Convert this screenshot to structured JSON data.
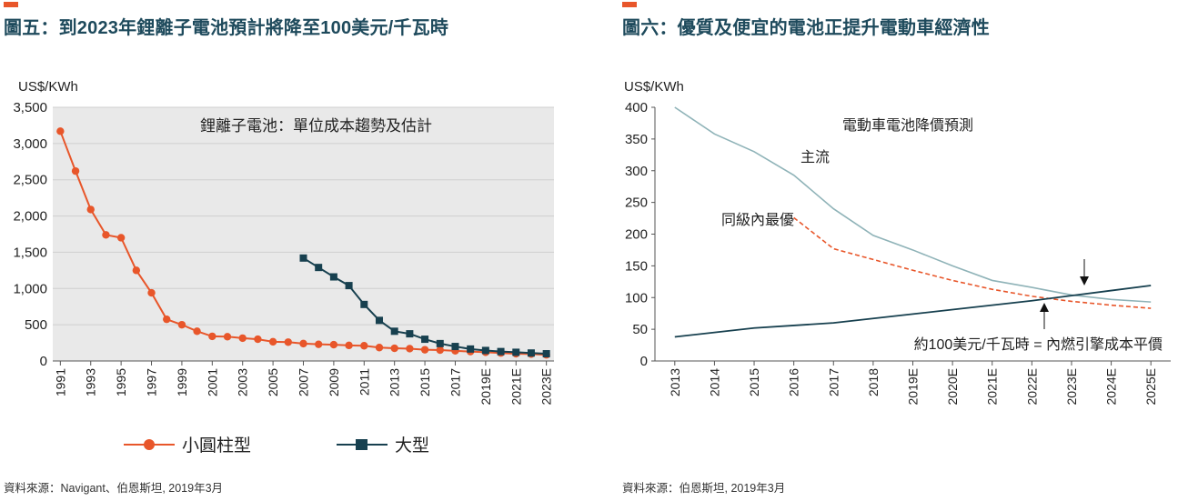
{
  "figures": [
    {
      "title": "圖五：到2023年鋰離子電池預計將降至100美元/千瓦時",
      "source": "資料來源：Navigant、伯恩斯坦, 2019年3月"
    },
    {
      "title": "圖六：優質及便宜的電池正提升電動車經濟性",
      "source": "資料來源：伯恩斯坦, 2019年3月"
    }
  ],
  "colors": {
    "accent": "#e8562a",
    "title": "#1e4a5c",
    "plot_bg": "#e9e9e9",
    "small_cylindrical": "#e8562a",
    "large": "#17404f",
    "mainstream": "#8fb3b8",
    "best_in_class": "#e8562a",
    "ice_parity": "#17404f"
  },
  "chart_data": [
    {
      "type": "line",
      "title": "鋰離子電池：單位成本趨勢及估計",
      "ylabel": "US$/KWh",
      "xlabel": "",
      "ylim": [
        0,
        3500
      ],
      "yticks": [
        "0",
        "500",
        "1,000",
        "1,500",
        "2,000",
        "2,500",
        "3,000",
        "3,500"
      ],
      "ytick_values": [
        0,
        500,
        1000,
        1500,
        2000,
        2500,
        3000,
        3500
      ],
      "grid": true,
      "legend_position": "bottom",
      "x_tick_labels": [
        "1991",
        "1993",
        "1995",
        "1997",
        "1999",
        "2001",
        "2003",
        "2005",
        "2007",
        "2009",
        "2011",
        "2013",
        "2015",
        "2017",
        "2019E",
        "2021E",
        "2023E"
      ],
      "x": [
        "1991",
        "1992",
        "1993",
        "1994",
        "1995",
        "1996",
        "1997",
        "1998",
        "1999",
        "2000",
        "2001",
        "2002",
        "2003",
        "2004",
        "2005",
        "2006",
        "2007",
        "2008",
        "2009",
        "2010",
        "2011",
        "2012",
        "2013",
        "2014",
        "2015",
        "2016",
        "2017",
        "2018",
        "2019E",
        "2020E",
        "2021E",
        "2022E",
        "2023E"
      ],
      "series": [
        {
          "name": "小圓柱型",
          "marker": "circle",
          "values": [
            3170,
            2620,
            2090,
            1740,
            1700,
            1250,
            940,
            575,
            500,
            410,
            340,
            335,
            315,
            300,
            265,
            260,
            240,
            230,
            225,
            215,
            210,
            185,
            175,
            170,
            155,
            150,
            140,
            130,
            120,
            110,
            100,
            95,
            85
          ]
        },
        {
          "name": "大型",
          "marker": "square",
          "values": [
            null,
            null,
            null,
            null,
            null,
            null,
            null,
            null,
            null,
            null,
            null,
            null,
            null,
            null,
            null,
            null,
            1420,
            1290,
            1160,
            1040,
            780,
            560,
            410,
            375,
            300,
            240,
            200,
            165,
            145,
            130,
            120,
            110,
            100
          ]
        }
      ]
    },
    {
      "type": "line",
      "title": "電動車電池降價預測",
      "ylabel": "US$/KWh",
      "xlabel": "",
      "ylim": [
        0,
        400
      ],
      "yticks": [
        "0",
        "50",
        "100",
        "150",
        "200",
        "250",
        "300",
        "350",
        "400"
      ],
      "ytick_values": [
        0,
        50,
        100,
        150,
        200,
        250,
        300,
        350,
        400
      ],
      "grid": false,
      "legend_position": "inline",
      "categories": [
        "2013",
        "2014",
        "2015",
        "2016",
        "2017",
        "2018",
        "2019E",
        "2020E",
        "2021E",
        "2022E",
        "2023E",
        "2024E",
        "2025E"
      ],
      "series": [
        {
          "name": "主流",
          "style": "solid",
          "values": [
            400,
            358,
            330,
            293,
            240,
            198,
            175,
            150,
            127,
            116,
            104,
            97,
            93
          ]
        },
        {
          "name": "同級內最優",
          "style": "dashed",
          "values": [
            null,
            null,
            null,
            226,
            177,
            160,
            143,
            127,
            113,
            102,
            94,
            88,
            83
          ]
        },
        {
          "name": "",
          "style": "solid",
          "values": [
            38,
            45,
            52,
            56,
            60,
            67,
            74,
            81,
            88,
            95,
            103,
            111,
            119
          ]
        }
      ],
      "annotations": [
        {
          "text": "約100美元/千瓦時 = 內燃引擎成本平價"
        }
      ]
    }
  ]
}
